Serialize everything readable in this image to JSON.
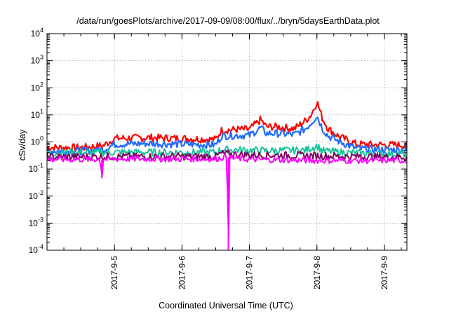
{
  "chart_data": {
    "type": "line",
    "title": "/data/run/goesPlots/archive/2017-09-09/08:00/flux/../bryn/5daysEarthData.plot",
    "xlabel": "Coordinated Universal Time (UTC)",
    "ylabel": "cSv/day",
    "xlim": [
      "2017-09-04 00:00",
      "2017-09-09 08:00"
    ],
    "yscale": "log",
    "ylim": [
      0.0001,
      10000
    ],
    "grid": true,
    "x_ticks": [
      {
        "x": "2017-09-05 00:00",
        "label": "2017-9-5"
      },
      {
        "x": "2017-09-06 00:00",
        "label": "2017-9-6"
      },
      {
        "x": "2017-09-07 00:00",
        "label": "2017-9-7"
      },
      {
        "x": "2017-09-08 00:00",
        "label": "2017-9-8"
      },
      {
        "x": "2017-09-09 00:00",
        "label": "2017-9-9"
      }
    ],
    "y_ticks": [
      {
        "base": "10",
        "exp": "-4"
      },
      {
        "base": "10",
        "exp": "-3"
      },
      {
        "base": "10",
        "exp": "-2"
      },
      {
        "base": "10",
        "exp": "-1"
      },
      {
        "base": "10",
        "exp": "0",
        "plain": "1.0"
      },
      {
        "base": "10",
        "exp": "1"
      },
      {
        "base": "10",
        "exp": "2"
      },
      {
        "base": "10",
        "exp": "3"
      },
      {
        "base": "10",
        "exp": "4"
      }
    ],
    "series": [
      {
        "color": "#ff0000",
        "x": [
          "2017-09-04 00:00",
          "2017-09-04 12:00",
          "2017-09-04 20:00",
          "2017-09-05 00:00",
          "2017-09-05 12:00",
          "2017-09-06 00:00",
          "2017-09-06 12:00",
          "2017-09-06 14:00",
          "2017-09-06 20:00",
          "2017-09-07 00:00",
          "2017-09-07 04:00",
          "2017-09-07 06:00",
          "2017-09-07 10:00",
          "2017-09-07 16:00",
          "2017-09-07 20:00",
          "2017-09-07 22:00",
          "2017-09-08 00:00",
          "2017-09-08 02:00",
          "2017-09-08 04:00",
          "2017-09-08 08:00",
          "2017-09-08 14:00",
          "2017-09-09 00:00",
          "2017-09-09 08:00"
        ],
        "y": [
          0.6,
          0.6,
          0.7,
          1.3,
          1.4,
          1.3,
          1.2,
          2.6,
          2.8,
          2.8,
          6.5,
          3.5,
          3.5,
          3.0,
          6.0,
          10,
          30,
          7,
          3.0,
          1.5,
          0.8,
          0.75,
          0.75
        ]
      },
      {
        "color": "#1e6bff",
        "x": [
          "2017-09-04 00:00",
          "2017-09-04 12:00",
          "2017-09-04 20:00",
          "2017-09-05 00:00",
          "2017-09-05 12:00",
          "2017-09-06 00:00",
          "2017-09-06 12:00",
          "2017-09-06 14:00",
          "2017-09-06 20:00",
          "2017-09-07 00:00",
          "2017-09-07 04:00",
          "2017-09-07 06:00",
          "2017-09-07 10:00",
          "2017-09-07 16:00",
          "2017-09-07 20:00",
          "2017-09-07 22:00",
          "2017-09-08 00:00",
          "2017-09-08 02:00",
          "2017-09-08 04:00",
          "2017-09-08 08:00",
          "2017-09-08 14:00",
          "2017-09-09 00:00",
          "2017-09-09 08:00"
        ],
        "y": [
          0.45,
          0.45,
          0.5,
          0.8,
          0.85,
          0.8,
          0.75,
          1.6,
          1.7,
          1.7,
          3.2,
          2.0,
          2.0,
          1.8,
          3.0,
          5.0,
          9.0,
          3.0,
          1.6,
          1.0,
          0.55,
          0.5,
          0.5
        ]
      },
      {
        "color": "#17c49a",
        "x": [
          "2017-09-04 00:00",
          "2017-09-05 00:00",
          "2017-09-06 00:00",
          "2017-09-06 12:00",
          "2017-09-06 14:00",
          "2017-09-07 00:00",
          "2017-09-07 06:00",
          "2017-09-07 20:00",
          "2017-09-08 00:00",
          "2017-09-08 02:00",
          "2017-09-08 12:00",
          "2017-09-09 00:00",
          "2017-09-09 08:00"
        ],
        "y": [
          0.38,
          0.4,
          0.4,
          0.4,
          0.5,
          0.48,
          0.46,
          0.48,
          0.7,
          0.45,
          0.38,
          0.36,
          0.35
        ]
      },
      {
        "color": "#800060",
        "x": [
          "2017-09-04 00:00",
          "2017-09-05 00:00",
          "2017-09-06 00:00",
          "2017-09-06 12:00",
          "2017-09-06 14:00",
          "2017-09-07 00:00",
          "2017-09-08 00:00",
          "2017-09-09 00:00",
          "2017-09-09 08:00"
        ],
        "y": [
          0.27,
          0.28,
          0.28,
          0.28,
          0.36,
          0.32,
          0.3,
          0.27,
          0.27
        ]
      },
      {
        "color": "#ff00ff",
        "x": [
          "2017-09-04 00:00",
          "2017-09-04 19:00",
          "2017-09-04 19:30",
          "2017-09-04 20:00",
          "2017-09-05 00:00",
          "2017-09-06 00:00",
          "2017-09-06 12:00",
          "2017-09-06 16:00",
          "2017-09-06 16:30",
          "2017-09-06 17:00",
          "2017-09-07 00:00",
          "2017-09-08 00:00",
          "2017-09-09 00:00",
          "2017-09-09 08:00"
        ],
        "y": [
          0.22,
          0.22,
          0.045,
          0.22,
          0.23,
          0.23,
          0.23,
          0.28,
          0.0001,
          0.25,
          0.22,
          0.2,
          0.2,
          0.2
        ]
      }
    ]
  }
}
